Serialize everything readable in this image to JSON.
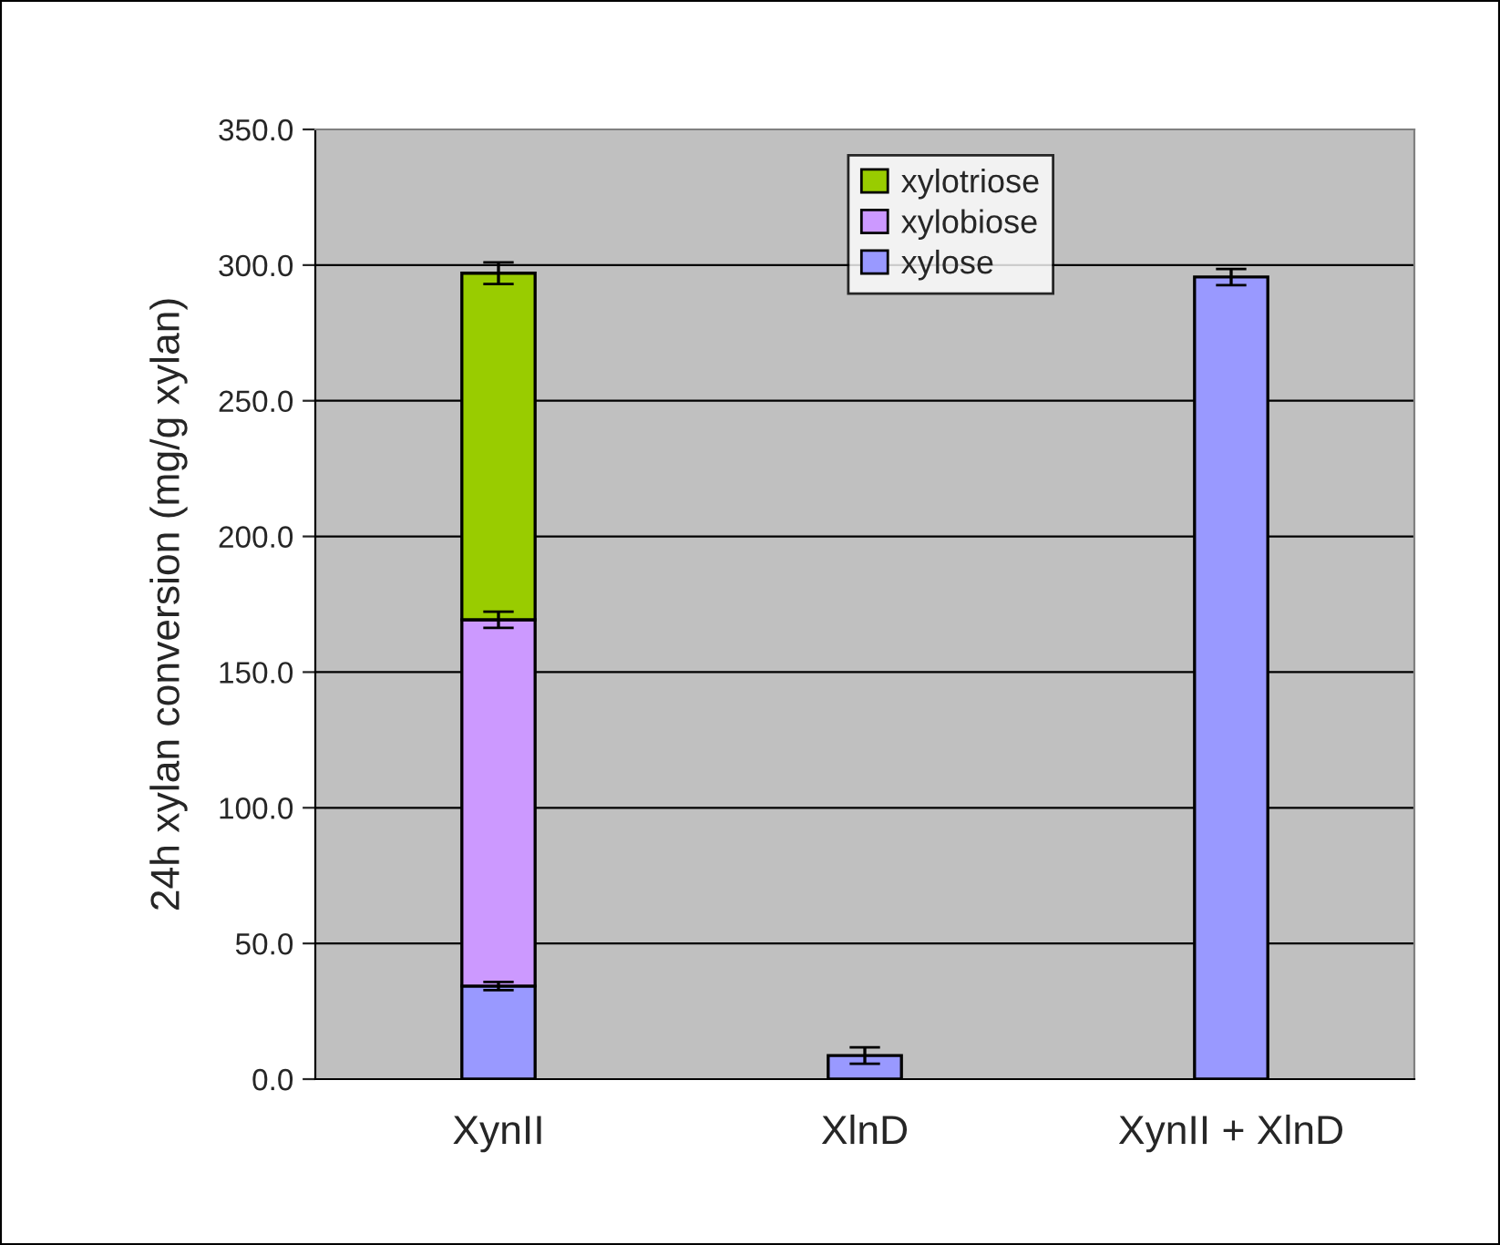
{
  "chart_data": {
    "type": "bar",
    "stacked": true,
    "ylabel": "24h xylan conversion (mg/g xylan)",
    "categories": [
      "XynII",
      "XlnD",
      "XynII + XlnD"
    ],
    "series": [
      {
        "name": "xylose",
        "color": "#9999ff",
        "values": [
          34.3,
          8.7,
          295.6
        ],
        "errors": [
          1.5,
          3,
          3
        ]
      },
      {
        "name": "xylobiose",
        "color": "#cc99ff",
        "values": [
          135.0,
          null,
          null
        ],
        "errors": [
          3,
          null,
          null
        ]
      },
      {
        "name": "xylotriose",
        "color": "#99cc00",
        "values": [
          127.7,
          null,
          null
        ],
        "errors": [
          4,
          null,
          null
        ]
      }
    ],
    "ylim": [
      0,
      350
    ],
    "yticks": [
      {
        "value": 0,
        "label": "0.0"
      },
      {
        "value": 50,
        "label": "50.0"
      },
      {
        "value": 100,
        "label": "100.0"
      },
      {
        "value": 150,
        "label": "150.0"
      },
      {
        "value": 200,
        "label": "200.0"
      },
      {
        "value": 250,
        "label": "250.0"
      },
      {
        "value": 300,
        "label": "300.0"
      },
      {
        "value": 350,
        "label": "350.0"
      }
    ],
    "grid": "y",
    "legend": "top"
  }
}
